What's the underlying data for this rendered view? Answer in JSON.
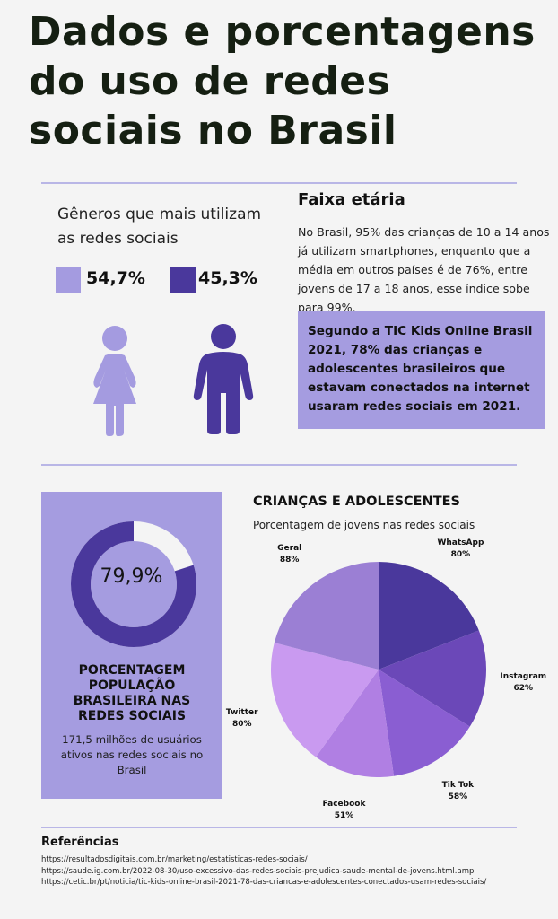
{
  "title_lines": [
    "Dados e porcentagens",
    "do uso de redes",
    "sociais no Brasil"
  ],
  "genders": {
    "heading": "Gêneros que mais utilizam as redes sociais",
    "items": [
      {
        "percent": "54,7%",
        "color": "#a49be0",
        "icon": "female-person-icon"
      },
      {
        "percent": "45,3%",
        "color": "#4a389c",
        "icon": "male-person-icon"
      }
    ]
  },
  "age": {
    "heading": "Faixa etária",
    "text": "No Brasil, 95% das crianças de 10 a 14 anos já utilizam smartphones, enquanto que a média em outros países é de 76%, entre jovens de 17 a 18 anos, esse índice sobe para 99%.",
    "highlight": "Segundo a TIC Kids Online Brasil 2021,  78% das crianças e adolescentes brasileiros que estavam conectados na internet usaram redes sociais em 2021."
  },
  "population": {
    "value": "79,9%",
    "fraction": 0.799,
    "title": "PORCENTAGEM POPULAÇÃO BRASILEIRA NAS REDES SOCIAIS",
    "subtitle": "171,5 milhões de usuários ativos nas redes sociais no Brasil"
  },
  "chart_data": {
    "type": "pie",
    "title": "CRIANÇAS E ADOLESCENTES",
    "subtitle": "Porcentagem de jovens nas redes sociais",
    "slices": [
      {
        "label": "WhatsApp",
        "value": 80,
        "value_label": "80%",
        "color": "#4a389c"
      },
      {
        "label": "Instagram",
        "value": 62,
        "value_label": "62%",
        "color": "#6b48b8"
      },
      {
        "label": "Tik Tok",
        "value": 58,
        "value_label": "58%",
        "color": "#8a5ed2"
      },
      {
        "label": "Facebook",
        "value": 51,
        "value_label": "51%",
        "color": "#b07fe3"
      },
      {
        "label": "Twitter",
        "value": 80,
        "value_label": "80%",
        "color": "#c99af0"
      },
      {
        "label": "Geral",
        "value": 88,
        "value_label": "88%",
        "color": "#9b7fd4"
      }
    ]
  },
  "references": {
    "heading": "Referências",
    "items": [
      "https://resultadosdigitais.com.br/marketing/estatisticas-redes-sociais/",
      "https://saude.ig.com.br/2022-08-30/uso-excessivo-das-redes-sociais-prejudica-saude-mental-de-jovens.html.amp",
      "https://cetic.br/pt/noticia/tic-kids-online-brasil-2021-78-das-criancas-e-adolescentes-conectados-usam-redes-sociais/"
    ]
  }
}
